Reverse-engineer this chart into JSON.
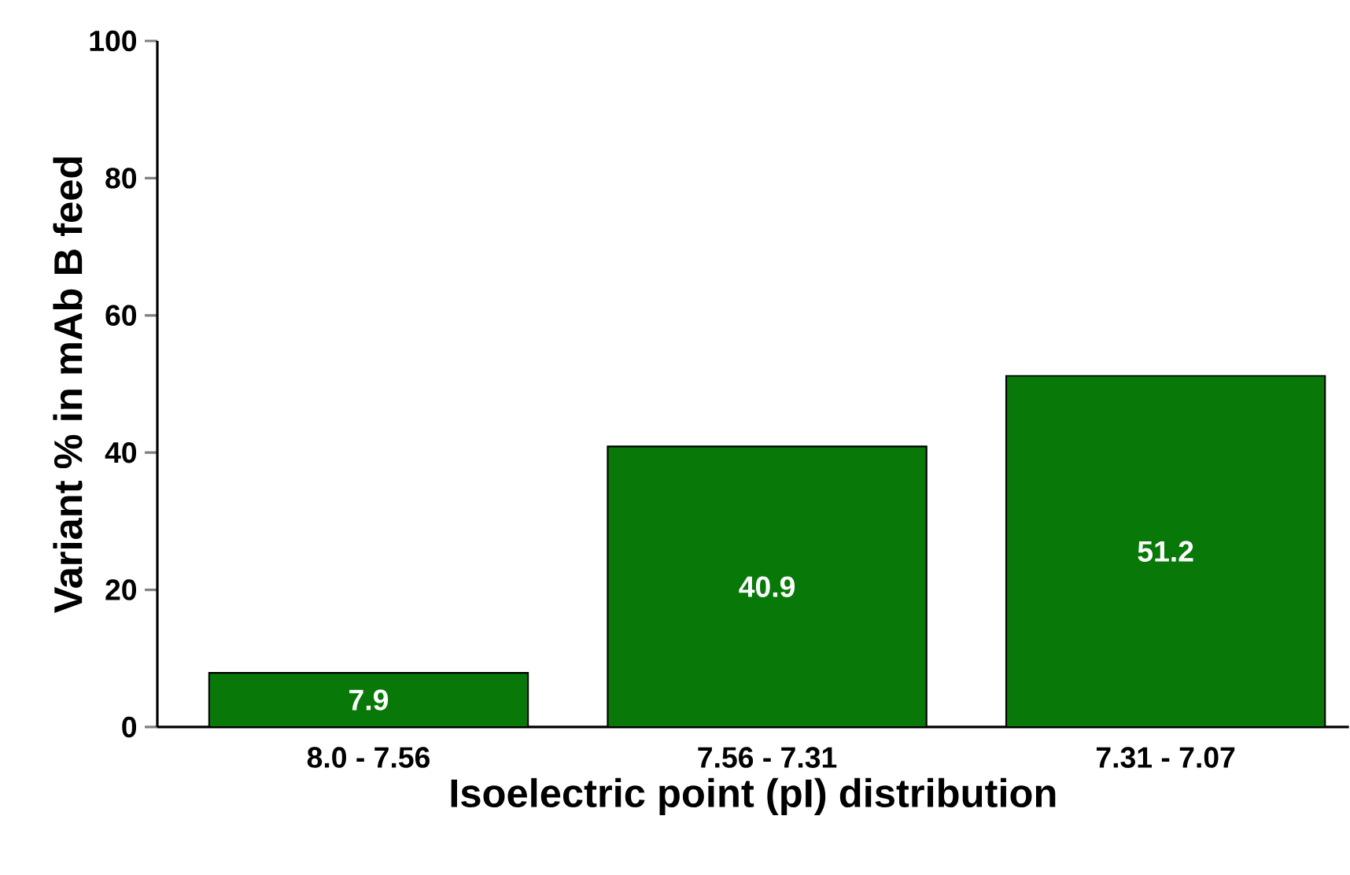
{
  "chart_data": {
    "type": "bar",
    "xlabel": "Isoelectric point (pI) distribution",
    "ylabel": "Variant % in mAb B feed",
    "categories": [
      "8.0 - 7.56",
      "7.56 - 7.31",
      "7.31 - 7.07"
    ],
    "values": [
      7.9,
      40.9,
      51.2
    ],
    "color": "#087808",
    "ylim": [
      0,
      100
    ],
    "yticks": [
      0,
      20,
      40,
      60,
      80,
      100
    ],
    "grid": false,
    "data_labels": true
  }
}
